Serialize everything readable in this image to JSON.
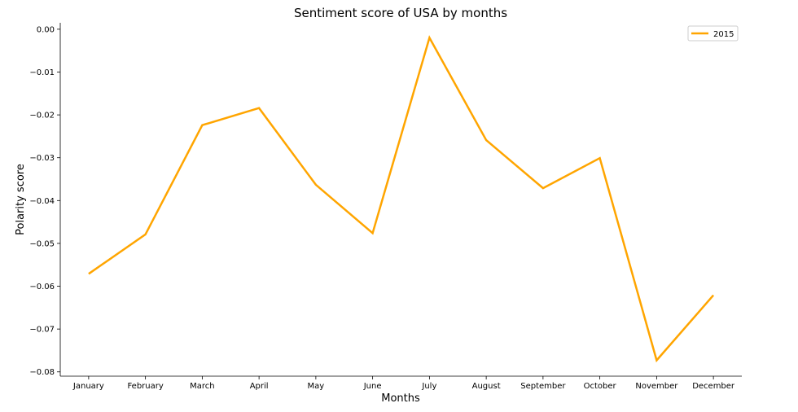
{
  "chart_data": {
    "type": "line",
    "title": "Sentiment score of USA by months",
    "xlabel": "Months",
    "ylabel": "Polarity score",
    "categories": [
      "January",
      "February",
      "March",
      "April",
      "May",
      "June",
      "July",
      "August",
      "September",
      "October",
      "November",
      "December"
    ],
    "series": [
      {
        "name": "2015",
        "color": "#FFA500",
        "values": [
          -0.0571,
          -0.0479,
          -0.0224,
          -0.0184,
          -0.0363,
          -0.0476,
          -0.002,
          -0.0259,
          -0.0371,
          -0.0301,
          -0.0773,
          -0.0621
        ]
      }
    ],
    "ylim": [
      -0.081,
      0.0015
    ],
    "yticks": [
      0.0,
      -0.01,
      -0.02,
      -0.03,
      -0.04,
      -0.05,
      -0.06,
      -0.07,
      -0.08
    ],
    "ytick_labels": [
      "0.00",
      "−0.01",
      "−0.02",
      "−0.03",
      "−0.04",
      "−0.05",
      "−0.06",
      "−0.07",
      "−0.08"
    ],
    "grid": false,
    "legend_position": "top-right",
    "spines": "left-bottom"
  }
}
